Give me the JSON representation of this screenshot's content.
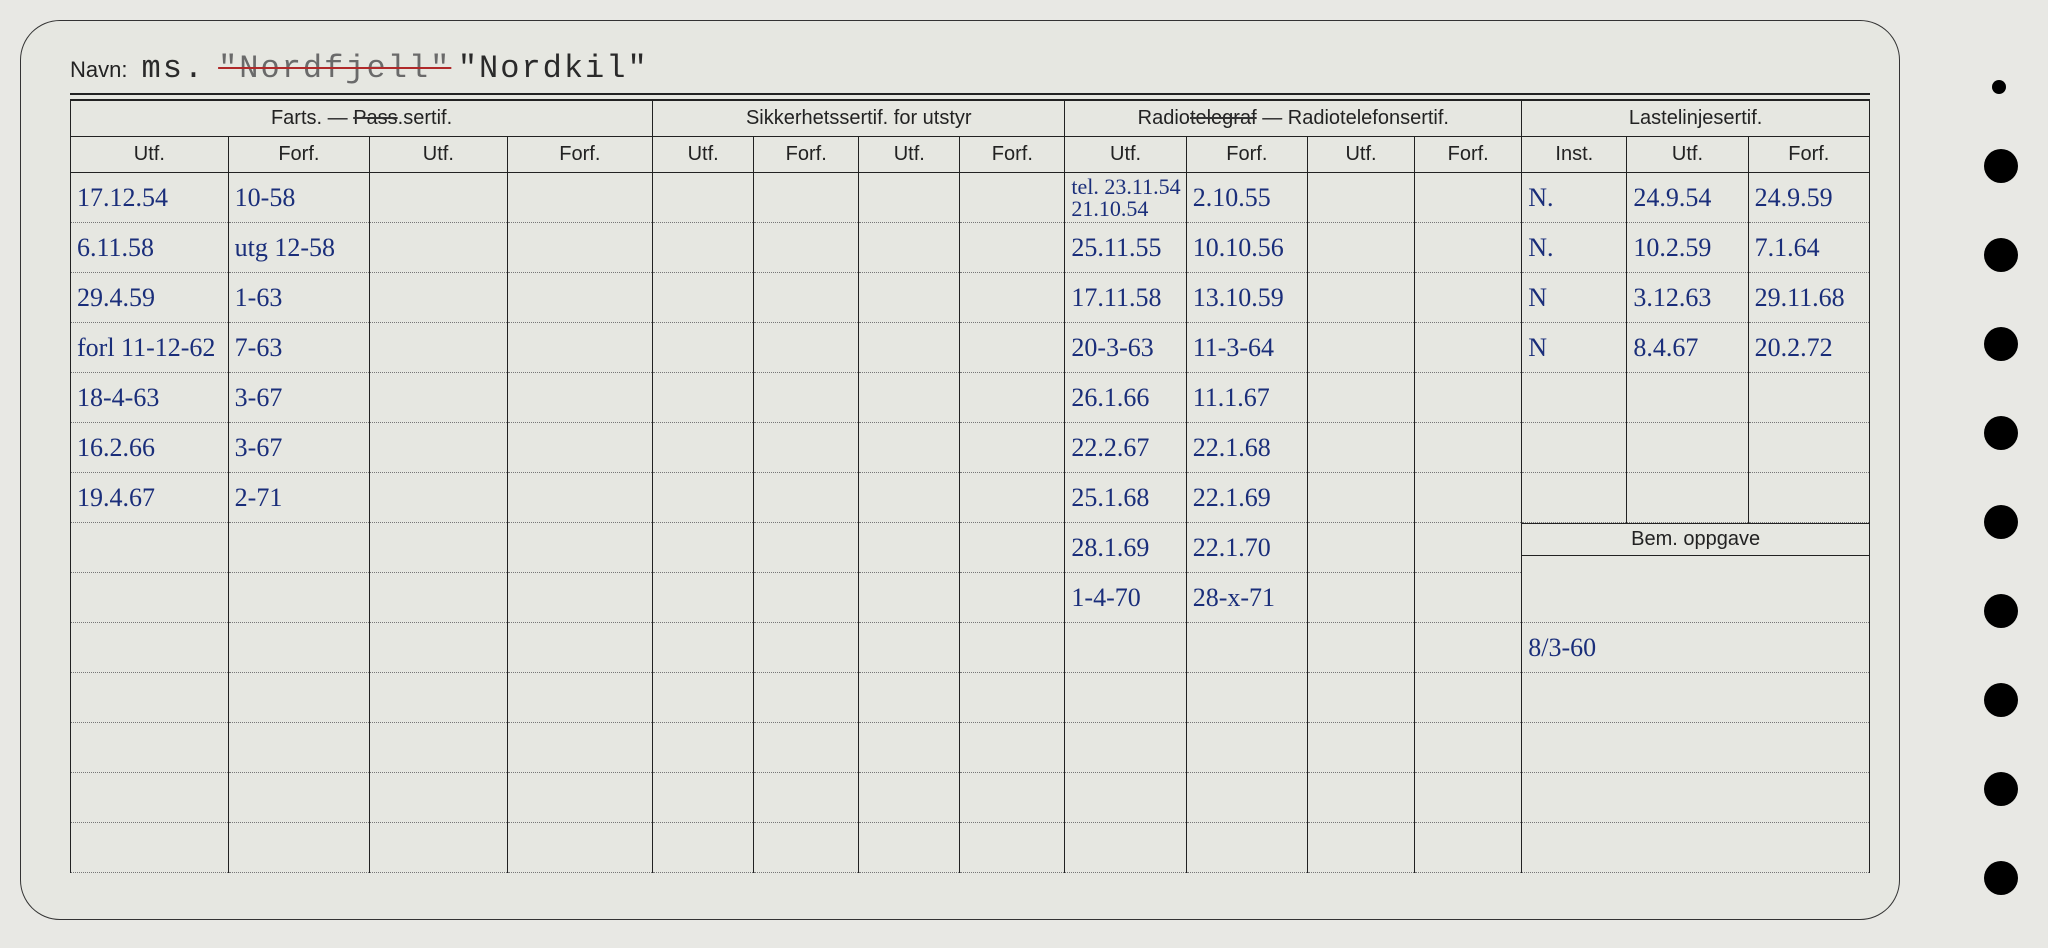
{
  "background_color": "#e6e7e1",
  "ink_color": "#1a2e7a",
  "print_color": "#222222",
  "navn": {
    "label": "Navn:",
    "prefix": "ms.",
    "struck": "\"Nordfjell\"",
    "current": "\"Nordkil\""
  },
  "groups": {
    "g1": "Farts. — Pass.sertif.",
    "g1_struck": "Pass",
    "g2": "Sikkerhetssertif. for utstyr",
    "g3_pre": "Radio",
    "g3_struck": "telegraf",
    "g3_post": " — Radiotelefonsertif.",
    "g4": "Lastelinjesertif."
  },
  "subheaders": {
    "utf": "Utf.",
    "forf": "Forf.",
    "inst": "Inst."
  },
  "bem_label": "Bem. oppgave",
  "bem_value": "8/3-60",
  "rows": [
    {
      "farts_utf": "17.12.54",
      "farts_forf": "10-58",
      "radio_utf_a": "tel. 23.11.54",
      "radio_utf_b": "21.10.54",
      "radio_forf": "2.10.55",
      "laste_inst": "N.",
      "laste_utf": "24.9.54",
      "laste_forf": "24.9.59"
    },
    {
      "farts_utf": "6.11.58",
      "farts_forf": "utg 12-58",
      "radio_utf": "25.11.55",
      "radio_forf": "10.10.56",
      "laste_inst": "N.",
      "laste_utf": "10.2.59",
      "laste_forf": "7.1.64"
    },
    {
      "farts_utf": "29.4.59",
      "farts_forf": "1-63",
      "radio_utf": "17.11.58",
      "radio_forf": "13.10.59",
      "laste_inst": "N",
      "laste_utf": "3.12.63",
      "laste_forf": "29.11.68"
    },
    {
      "farts_utf": "forl 11-12-62",
      "farts_forf": "7-63",
      "radio_utf": "20-3-63",
      "radio_forf": "11-3-64",
      "laste_inst": "N",
      "laste_utf": "8.4.67",
      "laste_forf": "20.2.72"
    },
    {
      "farts_utf": "18-4-63",
      "farts_forf": "3-67",
      "radio_utf": "26.1.66",
      "radio_forf": "11.1.67"
    },
    {
      "farts_utf": "16.2.66",
      "farts_forf": "3-67",
      "radio_utf": "22.2.67",
      "radio_forf": "22.1.68"
    },
    {
      "farts_utf": "19.4.67",
      "farts_forf": "2-71",
      "radio_utf": "25.1.68",
      "radio_forf": "22.1.69"
    },
    {
      "radio_utf": "28.1.69",
      "radio_forf": "22.1.70"
    },
    {
      "radio_utf": "1-4-70",
      "radio_forf": "28-x-71"
    },
    {},
    {},
    {},
    {},
    {}
  ]
}
